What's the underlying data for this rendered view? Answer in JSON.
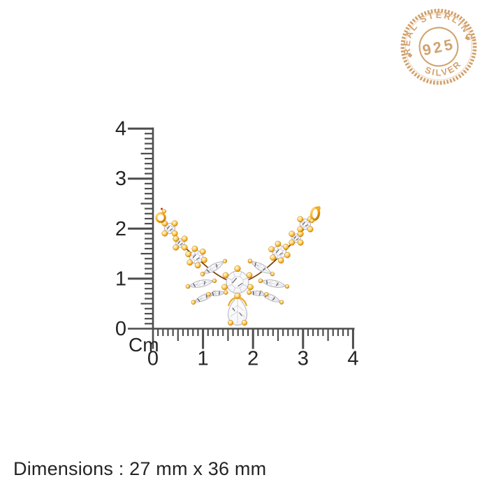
{
  "stamp": {
    "arc_top": "REAL STERLING",
    "center_number": "925",
    "arc_bottom": "SILVER",
    "color": "#cf9b63"
  },
  "ruler": {
    "unit_label": "Cm",
    "vertical_labels": [
      "0",
      "1",
      "2",
      "3",
      "4"
    ],
    "horizontal_labels": [
      "0",
      "1",
      "2",
      "3",
      "4"
    ],
    "tick_color": "#4c4c4c",
    "label_color": "#242424"
  },
  "caption": {
    "text": "Dimensions : 27 mm x 36 mm"
  },
  "pendant": {
    "kind": "gold-v-shaped-necklace-pendant-with-clear-stones",
    "gold": "#f2a714",
    "gold_dark": "#b86e00",
    "gold_light": "#ffdf8a",
    "wire": "#7a3a06",
    "stone_fill": "#ffffff",
    "stone_outline": "#b4b4bc",
    "stone_facet": "#cbcbd4",
    "stone_accent": "#4a4a54"
  }
}
